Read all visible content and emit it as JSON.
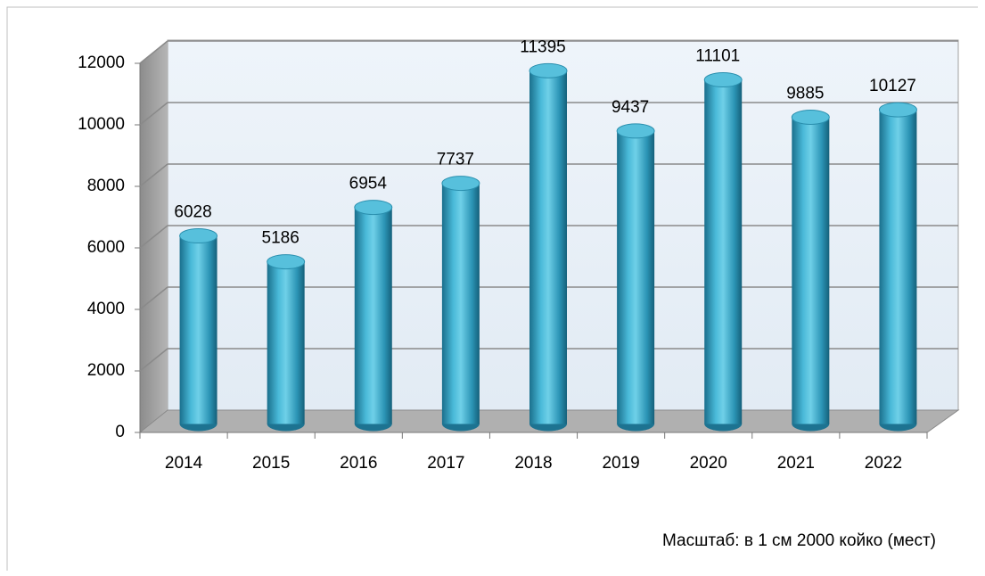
{
  "chart_data": {
    "type": "bar",
    "annotation": "Масштаб: в 1 см 2000 койко (мест)",
    "categories": [
      "2014",
      "2015",
      "2016",
      "2017",
      "2018",
      "2019",
      "2020",
      "2021",
      "2022"
    ],
    "values": [
      6028,
      5186,
      6954,
      7737,
      11395,
      9437,
      11101,
      9885,
      10127
    ],
    "color": "#2f9fc0",
    "ylim": [
      0,
      12000
    ],
    "yticks": [
      0,
      2000,
      4000,
      6000,
      8000,
      10000,
      12000
    ],
    "grid": true
  }
}
